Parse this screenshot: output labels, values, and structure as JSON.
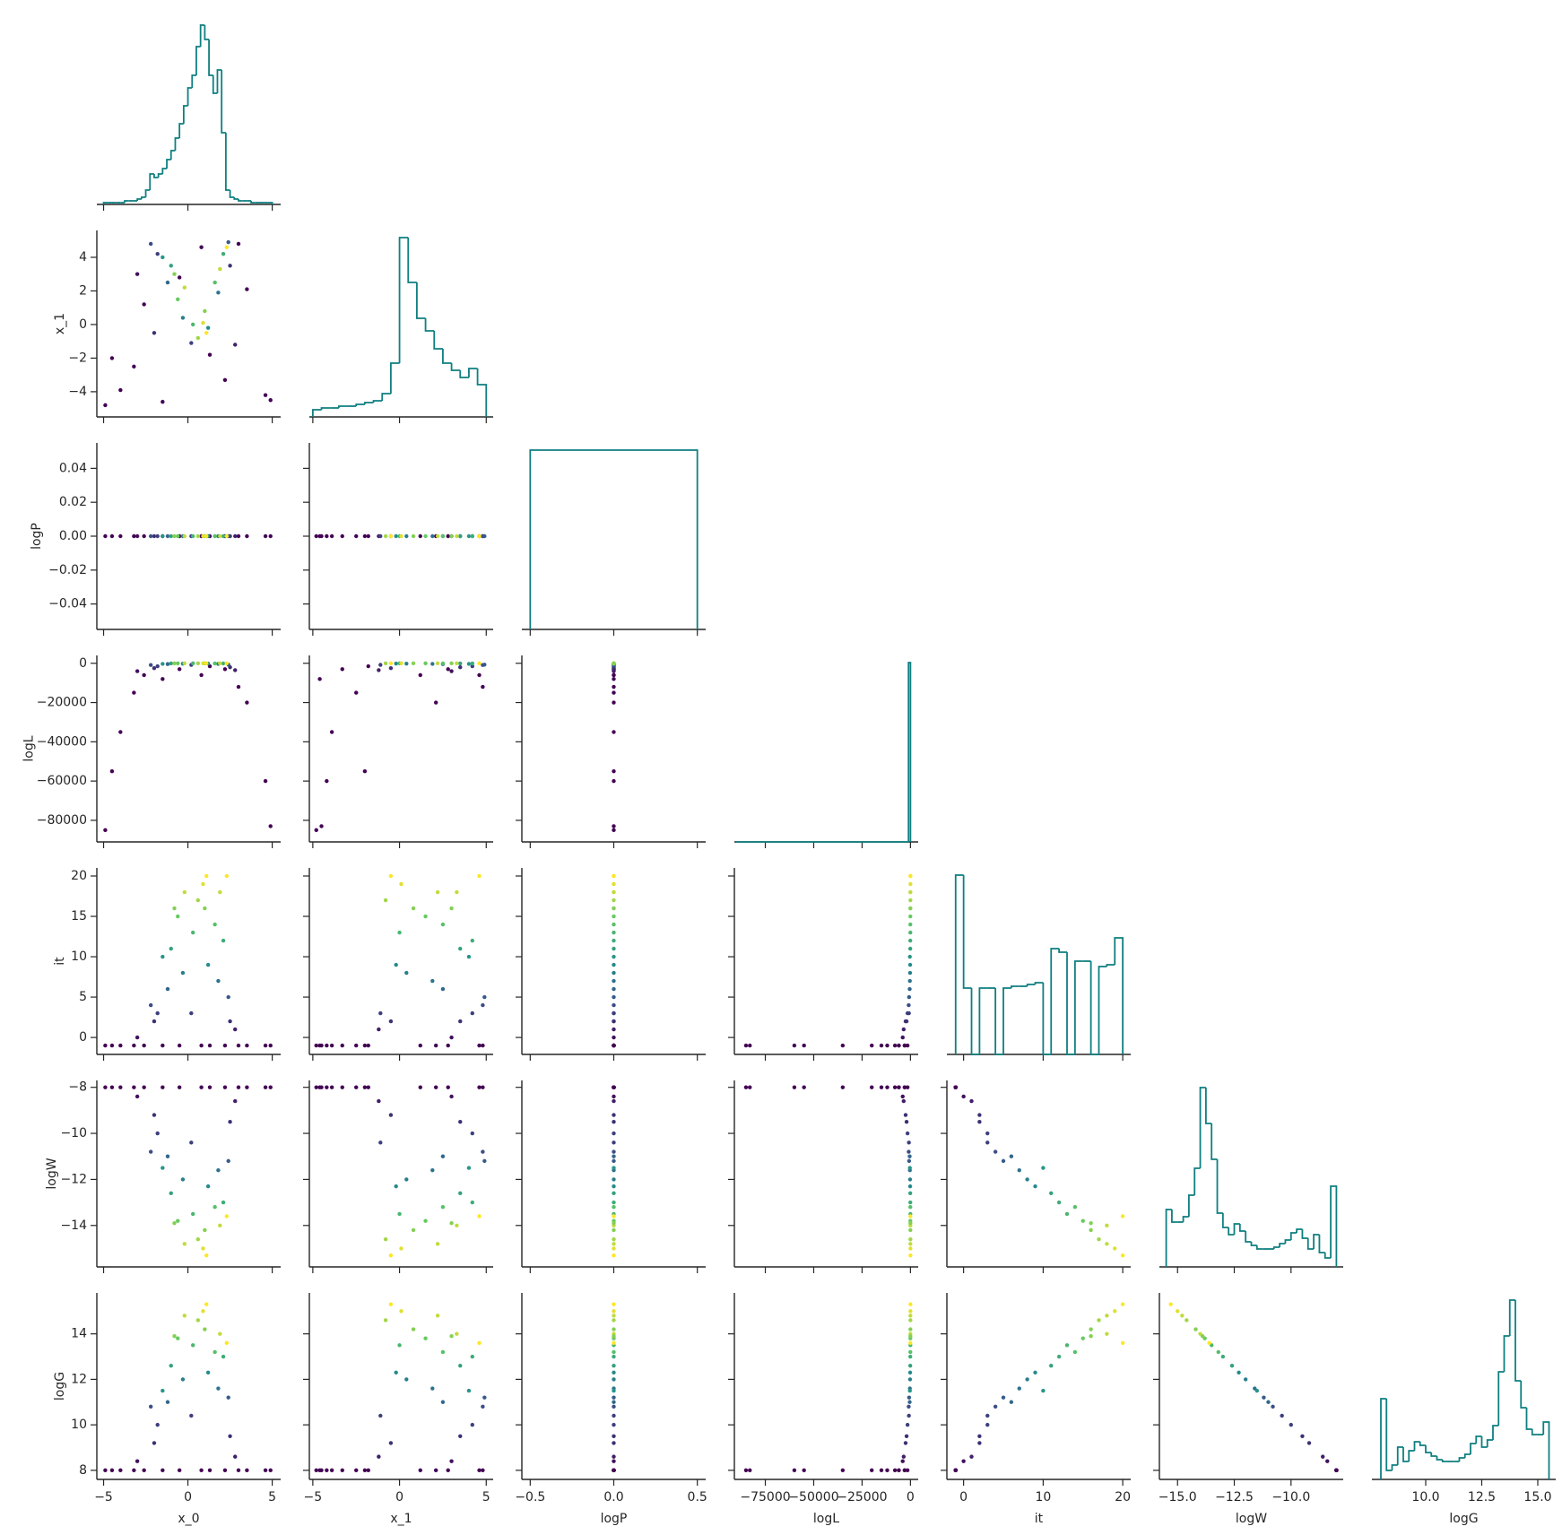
{
  "chart_data": {
    "type": "pairplot",
    "color_by": "it",
    "clim": [
      -1,
      20
    ],
    "cmap": [
      "#440154",
      "#3b528b",
      "#21918c",
      "#5ec962",
      "#fde725"
    ],
    "hist_color": "#0f7f80",
    "columns": [
      {
        "name": "x_0",
        "xlim": [
          -5.4,
          5.5
        ],
        "xticks": [
          {
            "value": -5,
            "label": "−5"
          },
          0,
          5
        ],
        "values": [
          -4.5,
          -3.2,
          4.6,
          3.5,
          -1.5,
          0.8,
          -4.9,
          4.9,
          2.2,
          -2.6,
          1.3,
          -0.5,
          3.0,
          -4.0,
          -3.0,
          2.8,
          -2.0,
          2.5,
          -1.8,
          0.2,
          -2.2,
          2.4,
          -1.2,
          1.8,
          -0.3,
          1.2,
          -1.5,
          -1.0,
          2.1,
          0.3,
          1.6,
          -0.6,
          1.0,
          0.6,
          1.9,
          0.9,
          1.1,
          -0.2,
          2.3,
          -0.8
        ],
        "hist": {
          "bins": [
            -5,
            -4.75,
            -4.5,
            -4.25,
            -4,
            -3.75,
            -3.5,
            -3.25,
            -3,
            -2.75,
            -2.5,
            -2.25,
            -2,
            -1.75,
            -1.5,
            -1.25,
            -1,
            -0.75,
            -0.5,
            -0.25,
            0,
            0.25,
            0.5,
            0.75,
            1,
            1.25,
            1.5,
            1.75,
            2,
            2.25,
            2.5,
            2.75,
            3,
            3.25,
            3.5,
            3.75,
            4,
            4.25,
            4.5,
            4.75,
            5
          ],
          "counts": [
            1,
            1,
            1,
            1,
            1,
            2,
            2,
            2,
            3,
            4,
            8,
            17,
            15,
            17,
            20,
            25,
            30,
            37,
            45,
            55,
            65,
            72,
            88,
            100,
            92,
            72,
            62,
            75,
            40,
            8,
            4,
            3,
            2,
            2,
            2,
            1,
            1,
            1,
            1,
            1
          ]
        }
      },
      {
        "name": "x_1",
        "xlim": [
          -5.2,
          5.4
        ],
        "xticks": [
          {
            "value": -5,
            "label": "−5"
          },
          0,
          5
        ],
        "ylim": [
          -5.5,
          5.6
        ],
        "yticks": [
          {
            "value": -4,
            "label": "−4"
          },
          {
            "value": -2,
            "label": "−2"
          },
          0,
          2,
          4
        ],
        "values": [
          -2.0,
          -2.5,
          -4.2,
          2.1,
          -4.6,
          4.6,
          -4.8,
          -4.5,
          -3.3,
          1.2,
          -1.8,
          2.8,
          4.8,
          -3.9,
          3.0,
          -1.2,
          -0.5,
          3.5,
          4.2,
          -1.1,
          4.8,
          4.9,
          2.5,
          1.9,
          0.4,
          -0.2,
          4.0,
          3.5,
          4.2,
          0.0,
          2.5,
          1.5,
          0.8,
          -0.8,
          3.3,
          0.1,
          -0.5,
          2.2,
          4.6,
          3.0
        ],
        "hist": {
          "bins": [
            -5,
            -4.5,
            -4,
            -3.5,
            -3,
            -2.5,
            -2,
            -1.5,
            -1,
            -0.5,
            0,
            0.5,
            1,
            1.5,
            2,
            2.5,
            3,
            3.5,
            4,
            4.5,
            5
          ],
          "counts": [
            4,
            5,
            5,
            6,
            6,
            7,
            8,
            9,
            13,
            30,
            100,
            75,
            55,
            48,
            38,
            30,
            26,
            22,
            27,
            18
          ]
        }
      },
      {
        "name": "logP",
        "xlim": [
          -0.55,
          0.55
        ],
        "xticks": [
          {
            "value": -0.5,
            "label": "−0.5"
          },
          {
            "value": 0,
            "label": "0.0"
          },
          0.5
        ],
        "ylim": [
          -0.055,
          0.055
        ],
        "yticks": [
          {
            "value": -0.04,
            "label": "−0.04"
          },
          {
            "value": -0.02,
            "label": "−0.02"
          },
          {
            "value": 0,
            "label": "0.00"
          },
          0.02,
          0.04
        ],
        "values": [
          0,
          0,
          0,
          0,
          0,
          0,
          0,
          0,
          0,
          0,
          0,
          0,
          0,
          0,
          0,
          0,
          0,
          0,
          0,
          0,
          0,
          0,
          0,
          0,
          0,
          0,
          0,
          0,
          0,
          0,
          0,
          0,
          0,
          0,
          0,
          0,
          0,
          0,
          0,
          0
        ],
        "hist": {
          "bins": [
            -0.5,
            0.5
          ],
          "counts": [
            100
          ]
        }
      },
      {
        "name": "logL",
        "xlim": [
          -91000,
          4000
        ],
        "xticks": [
          {
            "value": -75000,
            "label": "−75000"
          },
          {
            "value": -50000,
            "label": "−50000"
          },
          {
            "value": -25000,
            "label": "−25000"
          },
          0
        ],
        "ylim": [
          -91000,
          4000
        ],
        "yticks": [
          {
            "value": -80000,
            "label": "−80000"
          },
          {
            "value": -60000,
            "label": "−60000"
          },
          {
            "value": -40000,
            "label": "−40000"
          },
          {
            "value": -20000,
            "label": "−20000"
          },
          0
        ],
        "values": [
          -55000,
          -15000,
          -60000,
          -20000,
          -8000,
          -6000,
          -85000,
          -83000,
          -3000,
          -6000,
          -1500,
          -3000,
          -12000,
          -35000,
          -4000,
          -3500,
          -2500,
          -2000,
          -1500,
          -800,
          -900,
          -700,
          -400,
          -300,
          -200,
          -150,
          -300,
          -100,
          -80,
          -40,
          -60,
          -50,
          -30,
          -20,
          -40,
          -10,
          -5,
          -25,
          -35,
          -30
        ],
        "hist": {
          "bins": [
            -90000,
            -1000,
            0
          ],
          "counts": [
            0,
            100
          ]
        }
      },
      {
        "name": "it",
        "xlim": [
          -2.1,
          21
        ],
        "xticks": [
          0,
          10,
          20
        ],
        "ylim": [
          -2.1,
          21
        ],
        "yticks": [
          0,
          5,
          10,
          15,
          20
        ],
        "values": [
          -1,
          -1,
          -1,
          -1,
          -1,
          -1,
          -1,
          -1,
          -1,
          -1,
          -1,
          -1,
          -1,
          -1,
          0,
          1,
          2,
          2,
          3,
          3,
          4,
          5,
          6,
          7,
          8,
          9,
          10,
          11,
          12,
          13,
          14,
          15,
          16,
          17,
          18,
          19,
          20,
          18,
          20,
          16
        ],
        "hist": {
          "bins": [
            -1,
            0,
            1,
            2,
            3,
            4,
            5,
            6,
            7,
            8,
            9,
            10,
            11,
            12,
            13,
            14,
            15,
            16,
            17,
            18,
            19,
            20
          ],
          "counts": [
            100,
            37,
            0,
            37,
            37,
            0,
            37,
            38,
            38,
            39,
            40,
            0,
            59,
            57,
            0,
            52,
            52,
            0,
            49,
            50,
            65
          ]
        }
      },
      {
        "name": "logW",
        "xlim": [
          -15.8,
          -7.7
        ],
        "xticks": [
          {
            "value": -15,
            "label": "−15.0"
          },
          {
            "value": -12.5,
            "label": "−12.5"
          },
          {
            "value": -10,
            "label": "−10.0"
          }
        ],
        "ylim": [
          -15.8,
          -7.7
        ],
        "yticks": [
          {
            "value": -14,
            "label": "−14"
          },
          {
            "value": -12,
            "label": "−12"
          },
          {
            "value": -10,
            "label": "−10"
          },
          {
            "value": -8,
            "label": "−8"
          }
        ],
        "values": [
          -8,
          -8,
          -8,
          -8,
          -8,
          -8,
          -8,
          -8,
          -8,
          -8,
          -8,
          -8,
          -8,
          -8,
          -8.4,
          -8.6,
          -9.2,
          -9.5,
          -10.0,
          -10.4,
          -10.8,
          -11.2,
          -11.0,
          -11.6,
          -12.0,
          -12.3,
          -11.5,
          -12.6,
          -13.0,
          -13.5,
          -13.2,
          -13.8,
          -14.2,
          -14.6,
          -14.0,
          -15.0,
          -15.3,
          -14.8,
          -13.6,
          -13.9
        ],
        "hist": {
          "bins": [
            -15.5,
            -15.25,
            -15,
            -14.75,
            -14.5,
            -14.25,
            -14,
            -13.75,
            -13.5,
            -13.25,
            -13,
            -12.75,
            -12.5,
            -12.25,
            -12,
            -11.75,
            -11.5,
            -11.25,
            -11,
            -10.75,
            -10.5,
            -10.25,
            -10,
            -9.75,
            -9.5,
            -9.25,
            -9,
            -8.75,
            -8.5,
            -8.25,
            -8
          ],
          "counts": [
            32,
            25,
            25,
            28,
            40,
            55,
            100,
            80,
            60,
            30,
            22,
            18,
            24,
            20,
            14,
            12,
            10,
            10,
            10,
            11,
            13,
            15,
            19,
            21,
            16,
            10,
            18,
            8,
            5,
            45
          ]
        }
      },
      {
        "name": "logG",
        "xlim": [
          7.6,
          15.8
        ],
        "xticks": [
          {
            "value": 10,
            "label": "10.0"
          },
          12.5,
          {
            "value": 15,
            "label": "15.0"
          }
        ],
        "ylim": [
          7.6,
          15.8
        ],
        "yticks": [
          8,
          10,
          12,
          14
        ],
        "values": [
          8,
          8,
          8,
          8,
          8,
          8,
          8,
          8,
          8,
          8,
          8,
          8,
          8,
          8,
          8.4,
          8.6,
          9.2,
          9.5,
          10.0,
          10.4,
          10.8,
          11.2,
          11.0,
          11.6,
          12.0,
          12.3,
          11.5,
          12.6,
          13.0,
          13.5,
          13.2,
          13.8,
          14.2,
          14.6,
          14.0,
          15.0,
          15.3,
          14.8,
          13.6,
          13.9
        ],
        "hist": {
          "bins": [
            8,
            8.25,
            8.5,
            8.75,
            9,
            9.25,
            9.5,
            9.75,
            10,
            10.25,
            10.5,
            10.75,
            11,
            11.25,
            11.5,
            11.75,
            12,
            12.25,
            12.5,
            12.75,
            13,
            13.25,
            13.5,
            13.75,
            14,
            14.25,
            14.5,
            14.75,
            15,
            15.25,
            15.5
          ],
          "counts": [
            45,
            5,
            8,
            18,
            10,
            16,
            21,
            19,
            15,
            13,
            11,
            10,
            10,
            10,
            12,
            14,
            20,
            24,
            18,
            22,
            30,
            60,
            80,
            100,
            55,
            40,
            28,
            25,
            25,
            32
          ]
        }
      }
    ]
  }
}
